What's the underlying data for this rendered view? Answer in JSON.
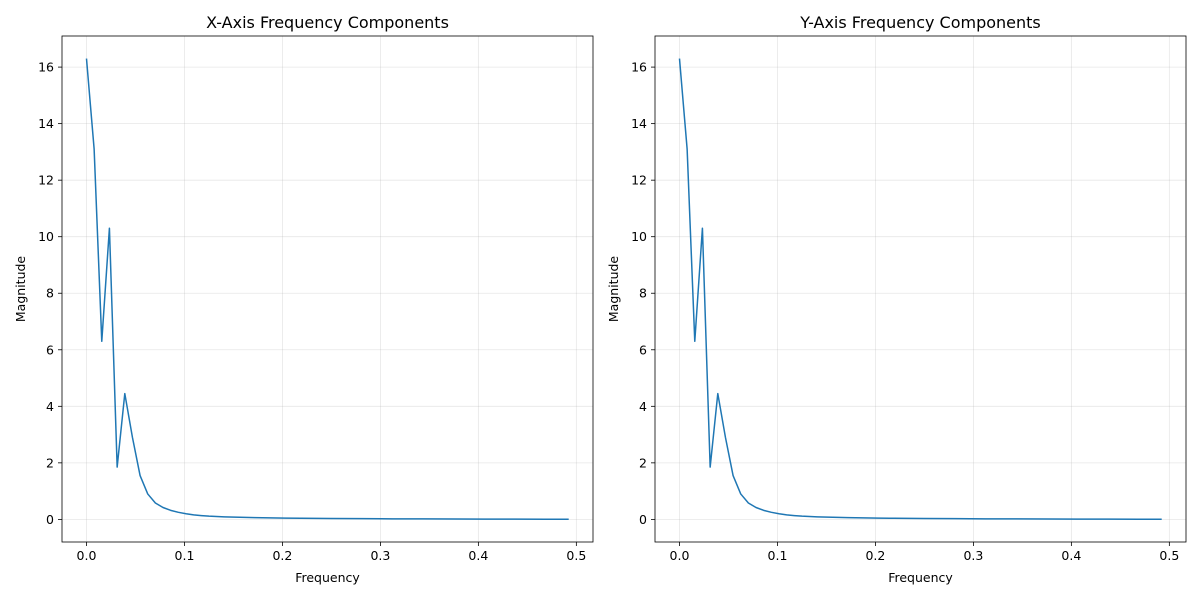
{
  "chart_data": [
    {
      "type": "line",
      "title": "X-Axis Frequency Components",
      "xlabel": "Frequency",
      "ylabel": "Magnitude",
      "xlim": [
        -0.025,
        0.517
      ],
      "ylim": [
        -0.8,
        17.1
      ],
      "xticks": [
        0.0,
        0.1,
        0.2,
        0.3,
        0.4,
        0.5
      ],
      "xtick_labels": [
        "0.0",
        "0.1",
        "0.2",
        "0.3",
        "0.4",
        "0.5"
      ],
      "yticks": [
        0,
        2,
        4,
        6,
        8,
        10,
        12,
        14,
        16
      ],
      "ytick_labels": [
        "0",
        "2",
        "4",
        "6",
        "8",
        "10",
        "12",
        "14",
        "16"
      ],
      "grid": true,
      "series": [
        {
          "color": "#1f77b4",
          "x": [
            0.0,
            0.0078,
            0.0156,
            0.0234,
            0.0313,
            0.0391,
            0.0469,
            0.0547,
            0.0625,
            0.0703,
            0.0781,
            0.0859,
            0.0938,
            0.1016,
            0.1094,
            0.1172,
            0.125,
            0.1406,
            0.1563,
            0.1719,
            0.1875,
            0.2031,
            0.2188,
            0.2344,
            0.25,
            0.2813,
            0.3125,
            0.3438,
            0.375,
            0.4063,
            0.4375,
            0.4688,
            0.4922
          ],
          "y": [
            16.3,
            13.1,
            6.3,
            10.3,
            1.85,
            4.45,
            2.9,
            1.55,
            0.9,
            0.58,
            0.42,
            0.32,
            0.25,
            0.2,
            0.16,
            0.135,
            0.115,
            0.09,
            0.075,
            0.062,
            0.052,
            0.045,
            0.04,
            0.035,
            0.031,
            0.025,
            0.02,
            0.016,
            0.013,
            0.01,
            0.008,
            0.006,
            0.005
          ]
        }
      ]
    },
    {
      "type": "line",
      "title": "Y-Axis Frequency Components",
      "xlabel": "Frequency",
      "ylabel": "Magnitude",
      "xlim": [
        -0.025,
        0.517
      ],
      "ylim": [
        -0.8,
        17.1
      ],
      "xticks": [
        0.0,
        0.1,
        0.2,
        0.3,
        0.4,
        0.5
      ],
      "xtick_labels": [
        "0.0",
        "0.1",
        "0.2",
        "0.3",
        "0.4",
        "0.5"
      ],
      "yticks": [
        0,
        2,
        4,
        6,
        8,
        10,
        12,
        14,
        16
      ],
      "ytick_labels": [
        "0",
        "2",
        "4",
        "6",
        "8",
        "10",
        "12",
        "14",
        "16"
      ],
      "grid": true,
      "series": [
        {
          "color": "#1f77b4",
          "x": [
            0.0,
            0.0078,
            0.0156,
            0.0234,
            0.0313,
            0.0391,
            0.0469,
            0.0547,
            0.0625,
            0.0703,
            0.0781,
            0.0859,
            0.0938,
            0.1016,
            0.1094,
            0.1172,
            0.125,
            0.1406,
            0.1563,
            0.1719,
            0.1875,
            0.2031,
            0.2188,
            0.2344,
            0.25,
            0.2813,
            0.3125,
            0.3438,
            0.375,
            0.4063,
            0.4375,
            0.4688,
            0.4922
          ],
          "y": [
            16.3,
            13.1,
            6.3,
            10.3,
            1.85,
            4.45,
            2.9,
            1.55,
            0.9,
            0.58,
            0.42,
            0.32,
            0.25,
            0.2,
            0.16,
            0.135,
            0.115,
            0.09,
            0.075,
            0.062,
            0.052,
            0.045,
            0.04,
            0.035,
            0.031,
            0.025,
            0.02,
            0.016,
            0.013,
            0.01,
            0.008,
            0.006,
            0.005
          ]
        }
      ]
    }
  ]
}
